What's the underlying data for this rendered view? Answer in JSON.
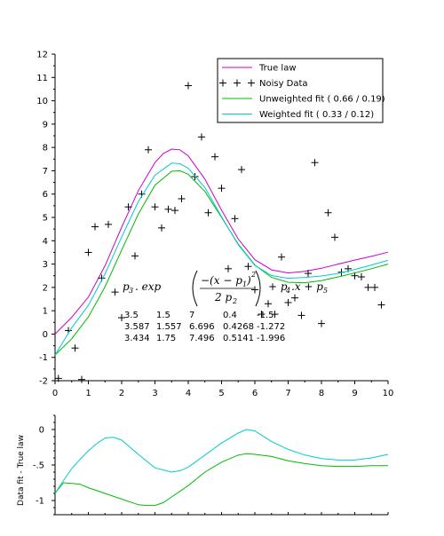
{
  "chart_data": [
    {
      "type": "line",
      "title": "",
      "xlabel": "",
      "ylabel": "",
      "xlim": [
        0,
        10
      ],
      "ylim": [
        -2,
        12
      ],
      "grid": false,
      "legend_position": "top-right",
      "x_ticks": [
        0,
        1,
        2,
        3,
        4,
        5,
        6,
        7,
        8,
        9,
        10
      ],
      "y_ticks": [
        -2,
        -1,
        0,
        1,
        2,
        3,
        4,
        5,
        6,
        7,
        8,
        9,
        10,
        11,
        12
      ],
      "series": [
        {
          "name": "True law",
          "style": "line",
          "color": "#cc00cc",
          "x": [
            0,
            0.5,
            1,
            1.5,
            2,
            2.5,
            3,
            3.25,
            3.5,
            3.75,
            4,
            4.5,
            5,
            5.5,
            6,
            6.5,
            7,
            7.5,
            8,
            8.5,
            9,
            9.5,
            10
          ],
          "y": [
            0,
            0.72,
            1.58,
            2.93,
            4.58,
            6.15,
            7.35,
            7.74,
            7.93,
            7.9,
            7.64,
            6.64,
            5.31,
            4.07,
            3.19,
            2.75,
            2.62,
            2.69,
            2.82,
            3.0,
            3.17,
            3.33,
            3.51
          ]
        },
        {
          "name": "Noisy Data",
          "style": "markers",
          "marker": "+",
          "color": "#000000",
          "x": [
            0.1,
            0.4,
            0.6,
            0.8,
            1.0,
            1.2,
            1.4,
            1.6,
            1.8,
            2.0,
            2.2,
            2.4,
            2.6,
            2.8,
            3.0,
            3.2,
            3.4,
            3.6,
            3.8,
            4.0,
            4.2,
            4.4,
            4.6,
            4.8,
            5.0,
            5.2,
            5.4,
            5.6,
            5.8,
            6.0,
            6.2,
            6.4,
            6.6,
            6.8,
            7.0,
            7.2,
            7.4,
            7.6,
            7.8,
            8.0,
            8.2,
            8.4,
            8.6,
            8.8,
            9.0,
            9.2,
            9.4,
            9.6,
            9.8
          ],
          "y": [
            -1.9,
            0.15,
            -0.6,
            -1.95,
            3.5,
            4.6,
            2.4,
            4.7,
            1.8,
            0.7,
            5.45,
            3.35,
            6.0,
            7.9,
            5.45,
            4.55,
            5.35,
            5.3,
            5.8,
            10.65,
            6.75,
            8.45,
            5.2,
            7.6,
            6.25,
            2.8,
            4.95,
            7.05,
            2.9,
            1.9,
            0.85,
            1.3,
            0.85,
            3.3,
            1.35,
            1.55,
            0.8,
            2.6,
            7.35,
            0.45,
            5.2,
            4.15,
            2.65,
            2.8,
            2.5,
            2.45,
            2.0,
            2.0,
            1.25
          ]
        },
        {
          "name": "Unweighted fit ( 0.66 / 0.19)",
          "style": "line",
          "color": "#00bb00",
          "x": [
            0,
            0.5,
            1,
            1.5,
            2,
            2.5,
            3,
            3.5,
            3.75,
            4,
            4.5,
            5,
            5.5,
            6,
            6.5,
            7,
            7.5,
            8,
            8.5,
            9,
            9.5,
            10
          ],
          "y": [
            -0.9,
            -0.2,
            0.73,
            2.03,
            3.6,
            5.15,
            6.38,
            6.98,
            7.0,
            6.85,
            6.11,
            5.0,
            3.86,
            2.96,
            2.43,
            2.22,
            2.2,
            2.29,
            2.45,
            2.62,
            2.8,
            3.0
          ]
        },
        {
          "name": "Weighted fit ( 0.33 / 0.12)",
          "style": "line",
          "color": "#00cccc",
          "x": [
            0,
            0.5,
            1,
            1.5,
            2,
            2.5,
            3,
            3.5,
            3.75,
            4,
            4.5,
            5,
            5.5,
            6,
            6.5,
            7,
            7.5,
            8,
            8.5,
            9,
            9.5,
            10
          ],
          "y": [
            -0.9,
            0.27,
            1.23,
            2.58,
            4.16,
            5.68,
            6.81,
            7.33,
            7.3,
            7.11,
            6.28,
            5.03,
            3.83,
            2.94,
            2.51,
            2.39,
            2.43,
            2.49,
            2.6,
            2.77,
            2.96,
            3.16
          ]
        }
      ]
    },
    {
      "type": "line",
      "title": "",
      "xlabel": "",
      "ylabel": "Data fit - True law",
      "xlim": [
        0,
        10
      ],
      "ylim": [
        -1.2,
        0.2
      ],
      "grid": false,
      "legend_position": "none",
      "x_ticks": [],
      "y_ticks": [
        0,
        -0.5,
        -1
      ],
      "series": [
        {
          "color": "#00bb00",
          "x": [
            0,
            0.25,
            0.5,
            0.75,
            1,
            1.5,
            2,
            2.5,
            2.75,
            3,
            3.25,
            3.5,
            4,
            4.5,
            5,
            5.5,
            5.75,
            6,
            6.5,
            7,
            7.5,
            8,
            8.5,
            9,
            9.5,
            10
          ],
          "y": [
            -0.9,
            -0.75,
            -0.76,
            -0.77,
            -0.82,
            -0.9,
            -0.98,
            -1.06,
            -1.07,
            -1.07,
            -1.03,
            -0.95,
            -0.79,
            -0.6,
            -0.46,
            -0.36,
            -0.34,
            -0.35,
            -0.38,
            -0.44,
            -0.48,
            -0.51,
            -0.52,
            -0.52,
            -0.51,
            -0.51
          ]
        },
        {
          "color": "#00cccc",
          "x": [
            0,
            0.25,
            0.5,
            0.75,
            1,
            1.25,
            1.5,
            1.75,
            2,
            2.5,
            3,
            3.5,
            3.75,
            4,
            4.5,
            5,
            5.5,
            5.75,
            6,
            6.5,
            7,
            7.5,
            8,
            8.5,
            9,
            9.5,
            10
          ],
          "y": [
            -0.9,
            -0.72,
            -0.55,
            -0.42,
            -0.3,
            -0.2,
            -0.12,
            -0.11,
            -0.15,
            -0.35,
            -0.54,
            -0.6,
            -0.58,
            -0.53,
            -0.36,
            -0.19,
            -0.05,
            0.0,
            -0.02,
            -0.17,
            -0.28,
            -0.36,
            -0.41,
            -0.43,
            -0.43,
            -0.4,
            -0.35
          ]
        }
      ]
    }
  ],
  "annotation": {
    "formula": "p3 . exp( -(x - p1)^2 / 2 p2 ) + p4.x + p5",
    "table": [
      [
        "3.5",
        "1.5",
        "7",
        "0.4",
        "-1.5"
      ],
      [
        "3.587",
        "1.557",
        "6.696",
        "0.4268",
        "-1.272"
      ],
      [
        "3.434",
        "1.75",
        "7.496",
        "0.5141",
        "-1.996"
      ]
    ]
  }
}
